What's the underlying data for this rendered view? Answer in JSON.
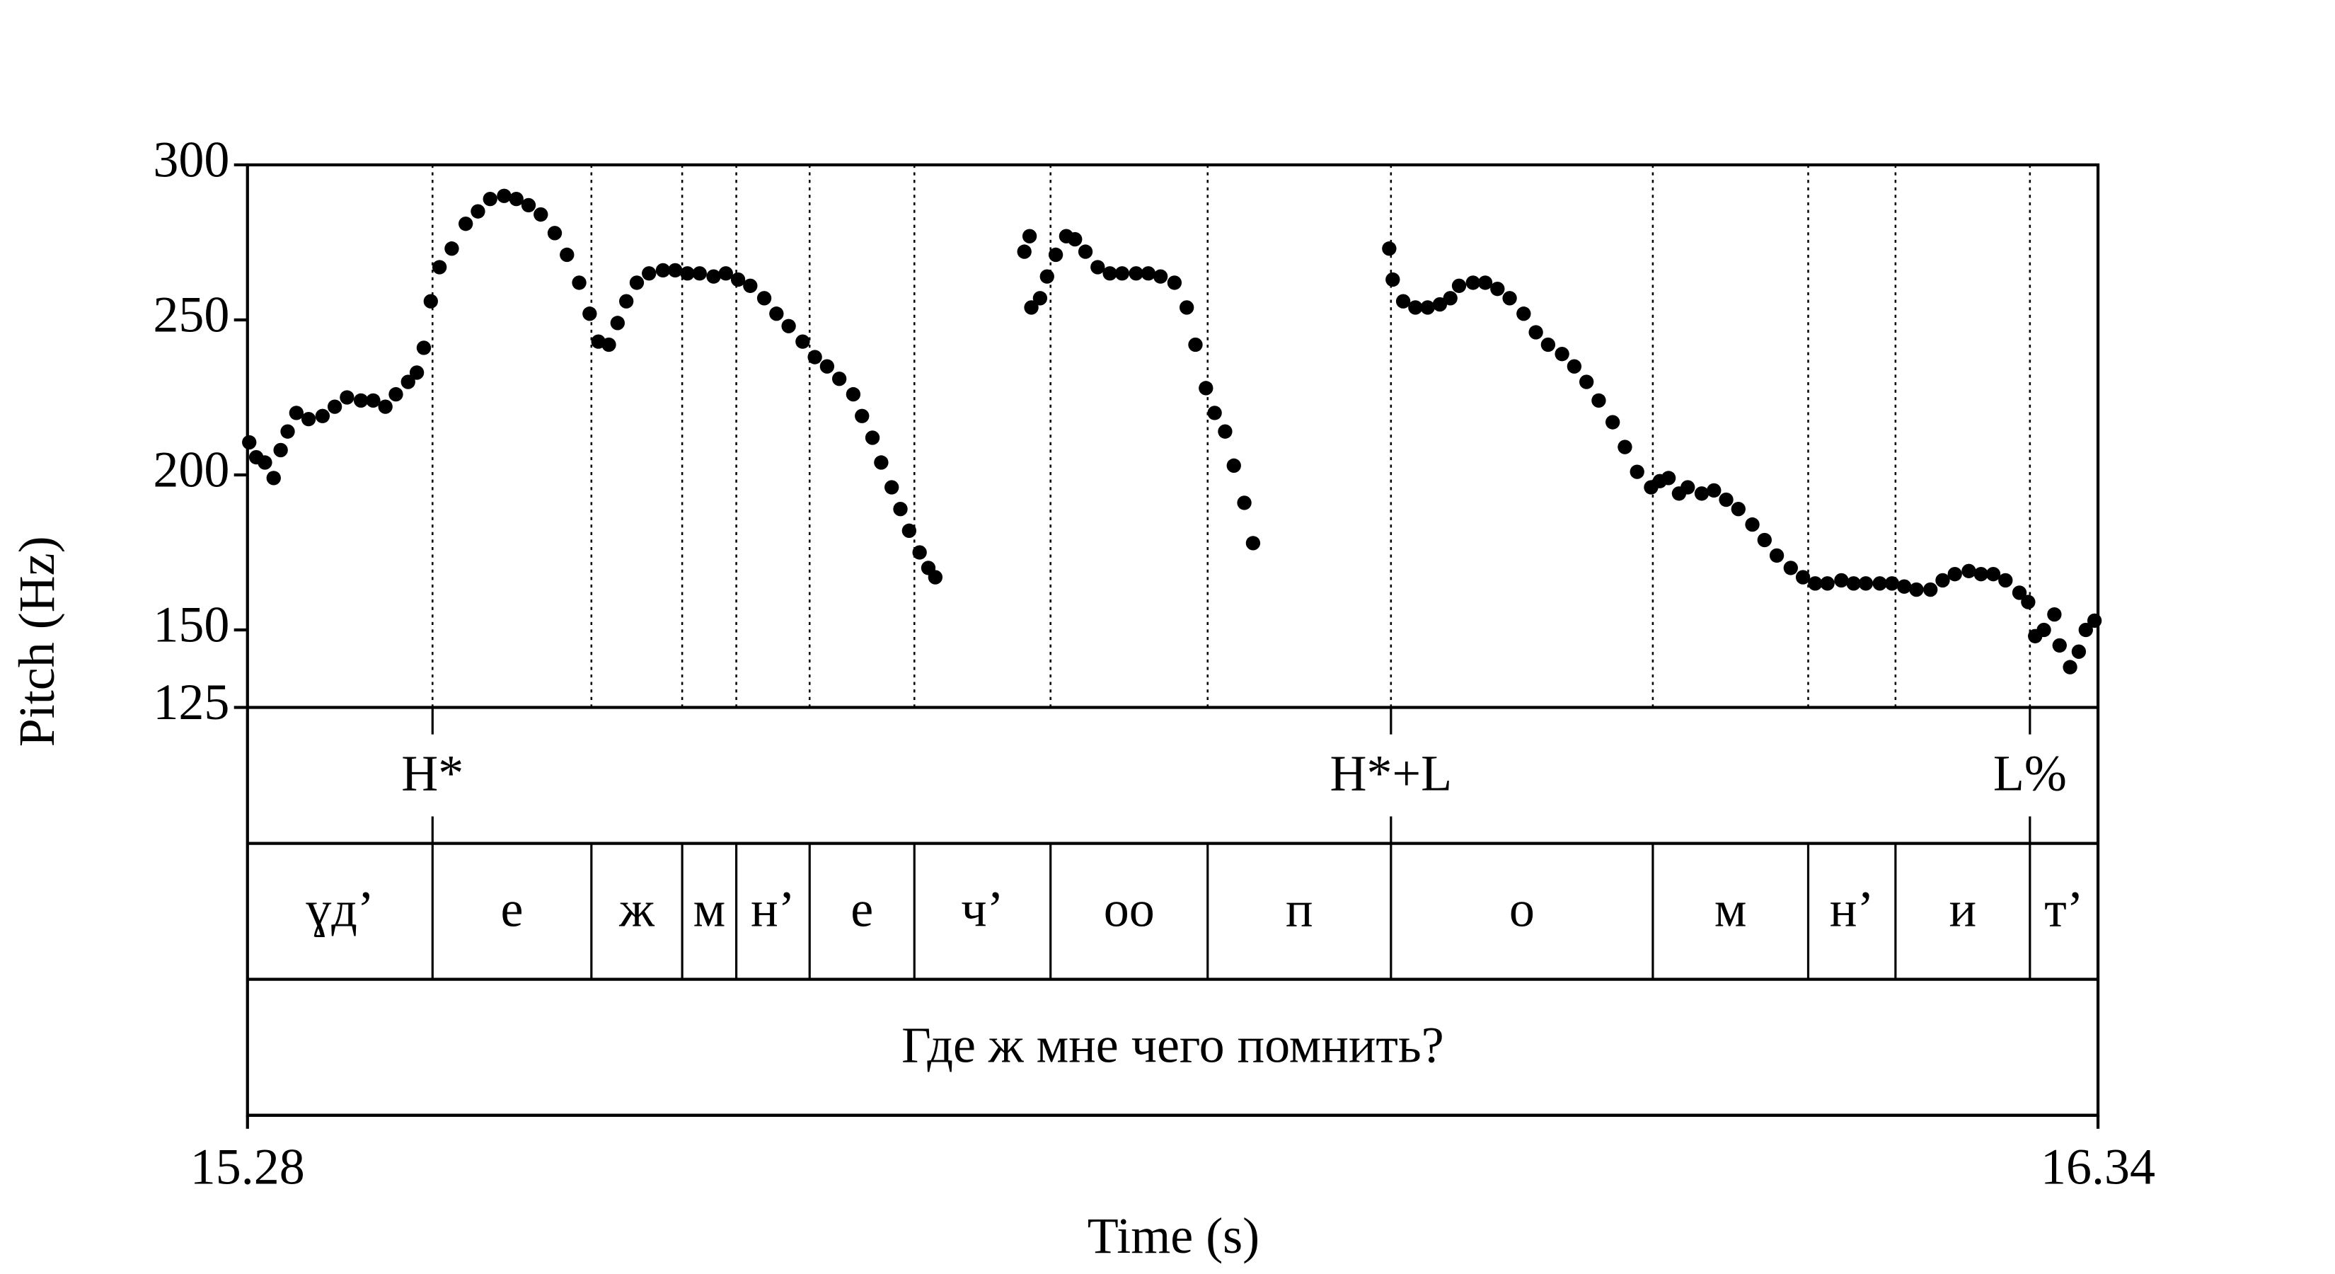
{
  "chart_data": {
    "type": "scatter",
    "x_label": "Time (s)",
    "y_label": "Pitch (Hz)",
    "xlim": [
      15.28,
      16.34
    ],
    "xticks": [
      15.28,
      16.34
    ],
    "ylim": [
      125,
      300
    ],
    "yticks": [
      125,
      150,
      200,
      250,
      300
    ],
    "color": "#000000",
    "x": [
      15.281,
      15.285,
      15.29,
      15.295,
      15.299,
      15.303,
      15.308,
      15.315,
      15.323,
      15.33,
      15.337,
      15.345,
      15.352,
      15.359,
      15.365,
      15.372,
      15.377,
      15.381,
      15.385,
      15.39,
      15.397,
      15.405,
      15.412,
      15.419,
      15.427,
      15.434,
      15.441,
      15.448,
      15.456,
      15.463,
      15.47,
      15.476,
      15.481,
      15.487,
      15.492,
      15.497,
      15.503,
      15.51,
      15.518,
      15.525,
      15.532,
      15.539,
      15.547,
      15.554,
      15.561,
      15.568,
      15.576,
      15.583,
      15.59,
      15.598,
      15.605,
      15.612,
      15.619,
      15.627,
      15.632,
      15.638,
      15.643,
      15.649,
      15.654,
      15.659,
      15.665,
      15.67,
      15.674,
      15.725,
      15.728,
      15.729,
      15.734,
      15.738,
      15.743,
      15.749,
      15.754,
      15.76,
      15.767,
      15.774,
      15.781,
      15.789,
      15.796,
      15.803,
      15.811,
      15.818,
      15.823,
      15.829,
      15.834,
      15.84,
      15.845,
      15.851,
      15.856,
      15.934,
      15.936,
      15.942,
      15.949,
      15.956,
      15.963,
      15.969,
      15.974,
      15.982,
      15.989,
      15.996,
      16.003,
      16.011,
      16.018,
      16.025,
      16.033,
      16.04,
      16.047,
      16.054,
      16.062,
      16.069,
      16.076,
      16.084,
      16.089,
      16.094,
      16.1,
      16.105,
      16.113,
      16.12,
      16.127,
      16.134,
      16.142,
      16.149,
      16.156,
      16.164,
      16.171,
      16.178,
      16.185,
      16.193,
      16.2,
      16.207,
      16.215,
      16.222,
      16.229,
      16.236,
      16.244,
      16.251,
      16.258,
      16.266,
      16.273,
      16.28,
      16.287,
      16.295,
      16.3,
      16.304,
      16.309,
      16.315,
      16.318,
      16.324,
      16.329,
      16.333,
      16.338
    ],
    "values": [
      210.5,
      205.7,
      204,
      199,
      208,
      214,
      220,
      218,
      219,
      222,
      225,
      224,
      224,
      222,
      226,
      230,
      233,
      241,
      256,
      267,
      273,
      281,
      285,
      289,
      290,
      289,
      287,
      284,
      278,
      271,
      262,
      252,
      243,
      242,
      249,
      256,
      262,
      265,
      266,
      266,
      265,
      265,
      264,
      265,
      263,
      261,
      257,
      252,
      248,
      243,
      238,
      235,
      231,
      226,
      219,
      212,
      204,
      196,
      189,
      182,
      175,
      170,
      167,
      272,
      277,
      254,
      257,
      264,
      271,
      277,
      276,
      272,
      267,
      265,
      265,
      265,
      265,
      264,
      262,
      254,
      242,
      228,
      220,
      214,
      203,
      191,
      178,
      273,
      263,
      256,
      254,
      254,
      255,
      257,
      261,
      262,
      262,
      260,
      257,
      252,
      246,
      242,
      239,
      235,
      230,
      224,
      217,
      209,
      201,
      196,
      198,
      199,
      194,
      196,
      194,
      195,
      192,
      189,
      184,
      179,
      174,
      170,
      167,
      165,
      165,
      166,
      165,
      165,
      165,
      165,
      164,
      163,
      163,
      166,
      168,
      169,
      168,
      168,
      166,
      162,
      159,
      148,
      150,
      155,
      145,
      138,
      143,
      150,
      153
    ],
    "tiers": [
      {
        "type": "point",
        "times": [
          15.386,
          15.935,
          16.301
        ],
        "labels": [
          "H*",
          "H*+L",
          "L%"
        ]
      },
      {
        "type": "interval",
        "boundaries": [
          15.386,
          15.477,
          15.529,
          15.56,
          15.602,
          15.662,
          15.74,
          15.83,
          15.935,
          16.085,
          16.174,
          16.224,
          16.301
        ],
        "labels": [
          "ɣд’",
          "е",
          "ж",
          "м",
          "н’",
          "е",
          "ч’",
          "оо",
          "п",
          "о",
          "м",
          "н’",
          "и",
          "т’"
        ]
      },
      {
        "type": "interval",
        "boundaries": [],
        "labels": [
          "Где ж мне чего помнить?"
        ]
      }
    ]
  }
}
